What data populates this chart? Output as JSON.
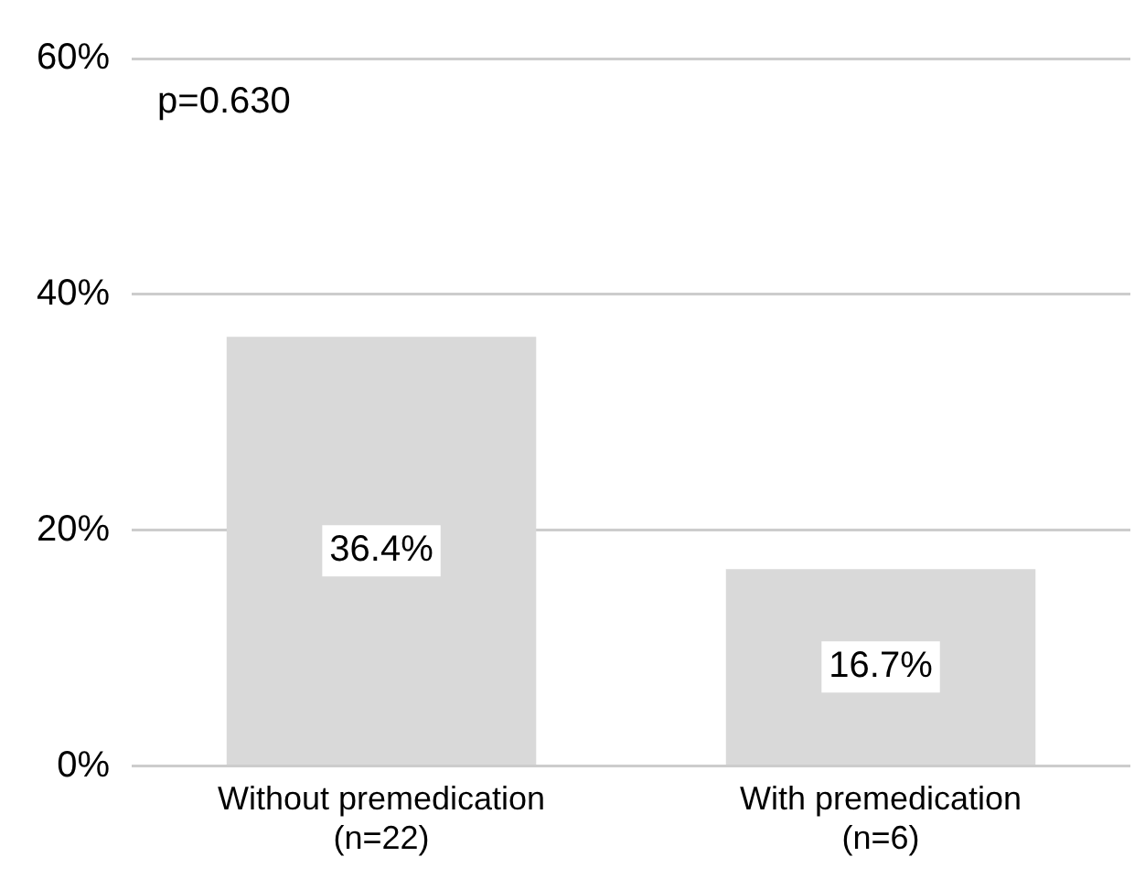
{
  "chart_data": {
    "type": "bar",
    "categories": [
      "Without premedication\n(n=22)",
      "With premedication\n(n=6)"
    ],
    "values": [
      36.4,
      16.7
    ],
    "color": "#d9d9d9",
    "value_labels": [
      "36.4%",
      "16.7%"
    ],
    "ylim": [
      0,
      60
    ],
    "yticks": [
      {
        "value": 0,
        "label": "0%"
      },
      {
        "value": 20,
        "label": "20%"
      },
      {
        "value": 40,
        "label": "40%"
      },
      {
        "value": 60,
        "label": "60%"
      }
    ],
    "grid": "y",
    "legend": false,
    "annotations": [
      "p=0.630"
    ]
  }
}
